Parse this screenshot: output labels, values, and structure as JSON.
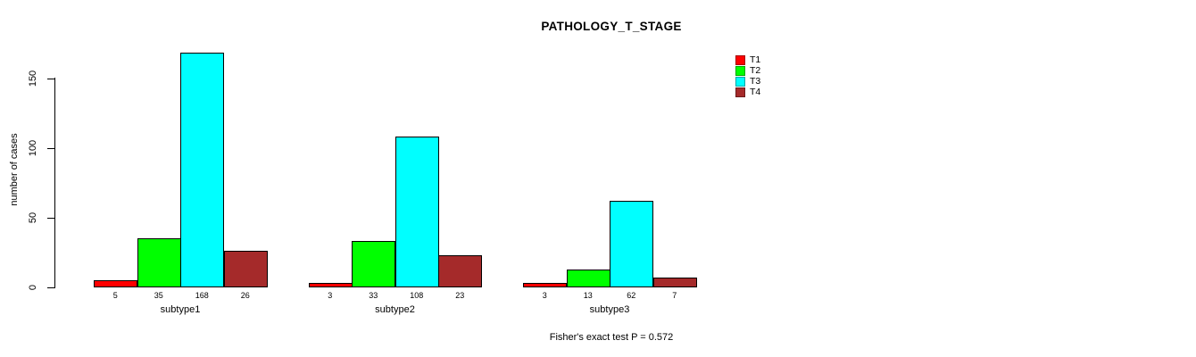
{
  "chart_data": {
    "type": "bar",
    "title": "PATHOLOGY_T_STAGE",
    "ylabel": "number of cases",
    "xlabel": "",
    "categories": [
      "subtype1",
      "subtype2",
      "subtype3"
    ],
    "series": [
      {
        "name": "T1",
        "color": "#FF0000",
        "values": [
          5,
          3,
          3
        ]
      },
      {
        "name": "T2",
        "color": "#00FF00",
        "values": [
          35,
          33,
          13
        ]
      },
      {
        "name": "T3",
        "color": "#00FFFF",
        "values": [
          168,
          108,
          62
        ]
      },
      {
        "name": "T4",
        "color": "#A52A2A",
        "values": [
          26,
          23,
          7
        ]
      }
    ],
    "value_labels_shown": true,
    "yticks": [
      0,
      50,
      100,
      150
    ],
    "ylim": [
      0,
      170
    ],
    "grid": false,
    "legend_position": "right",
    "annotation": "Fisher's exact test P = 0.572"
  }
}
